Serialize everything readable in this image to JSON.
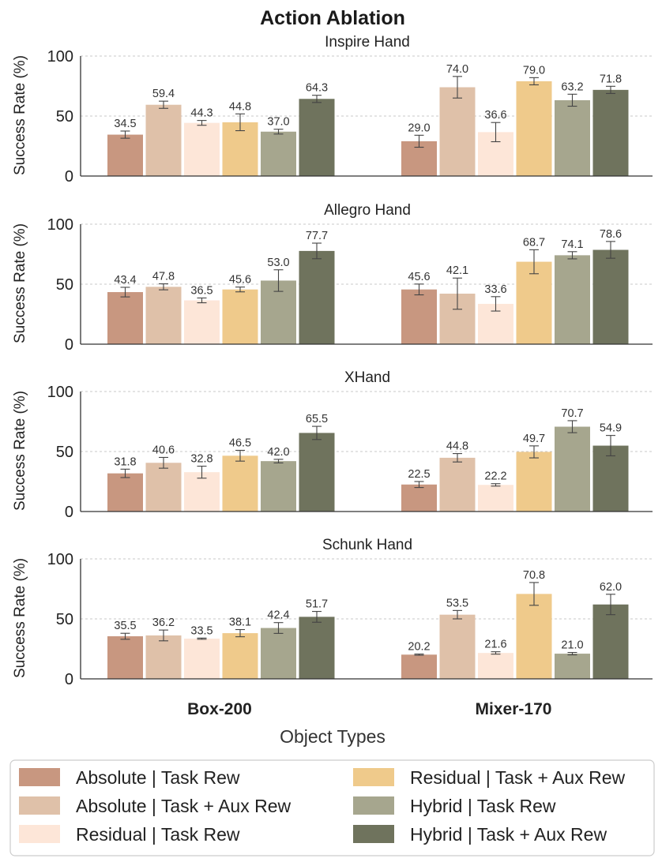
{
  "chart_data": {
    "type": "bar",
    "title": "Action Ablation",
    "xlabel": "Object Types",
    "ylabel": "Success Rate (%)",
    "ylim": [
      0,
      100
    ],
    "yticks": [
      0,
      50,
      100
    ],
    "grid": true,
    "legend_position": "bottom",
    "categories": [
      "Box-200",
      "Mixer-170"
    ],
    "series": [
      {
        "name": "Absolute | Task Rew",
        "color": "#c89780"
      },
      {
        "name": "Absolute | Task + Aux Rew",
        "color": "#dfc1a9"
      },
      {
        "name": "Residual | Task Rew",
        "color": "#fde6d8"
      },
      {
        "name": "Residual | Task + Aux Rew",
        "color": "#efca8b"
      },
      {
        "name": "Hybrid | Task Rew",
        "color": "#a6a68e"
      },
      {
        "name": "Hybrid | Task + Aux Rew",
        "color": "#6f735d"
      }
    ],
    "panels": [
      {
        "title": "Inspire Hand",
        "values": [
          [
            34.5,
            59.4,
            44.3,
            44.8,
            37.0,
            64.3
          ],
          [
            29.0,
            74.0,
            36.6,
            79.0,
            63.2,
            71.8
          ]
        ],
        "errors": [
          [
            3,
            3,
            2,
            7,
            2,
            3
          ],
          [
            5,
            9,
            8,
            3,
            5,
            3
          ]
        ],
        "labels": [
          [
            "34.5",
            "59.4",
            "44.3",
            "44.8",
            "37.0",
            "64.3"
          ],
          [
            "29.0",
            "74.0",
            "36.6",
            "79.0",
            "63.2",
            "71.8"
          ]
        ]
      },
      {
        "title": "Allegro Hand",
        "values": [
          [
            43.4,
            47.8,
            36.5,
            45.6,
            53.0,
            77.7
          ],
          [
            45.6,
            42.1,
            33.6,
            68.7,
            74.1,
            78.6
          ]
        ],
        "errors": [
          [
            4,
            2.5,
            2,
            2,
            9,
            6.5
          ],
          [
            4.5,
            13,
            6,
            10,
            3,
            7
          ]
        ],
        "labels": [
          [
            "43.4",
            "47.8",
            "36.5",
            "45.6",
            "53.0",
            "77.7"
          ],
          [
            "45.6",
            "42.1",
            "33.6",
            "68.7",
            "74.1",
            "78.6"
          ]
        ]
      },
      {
        "title": "XHand",
        "values": [
          [
            31.8,
            40.6,
            32.8,
            46.5,
            42.0,
            65.5
          ],
          [
            22.5,
            44.8,
            22.2,
            49.7,
            70.7,
            54.9
          ]
        ],
        "errors": [
          [
            3.5,
            4.5,
            5,
            4.5,
            1.5,
            5.5
          ],
          [
            2.5,
            3.5,
            1,
            5,
            5,
            8.5
          ]
        ],
        "labels": [
          [
            "31.8",
            "40.6",
            "32.8",
            "46.5",
            "42.0",
            "65.5"
          ],
          [
            "22.5",
            "44.8",
            "22.2",
            "49.7",
            "70.7",
            "54.9"
          ]
        ]
      },
      {
        "title": "Schunk Hand",
        "values": [
          [
            35.5,
            36.2,
            33.5,
            38.1,
            42.4,
            51.7
          ],
          [
            20.2,
            53.5,
            21.6,
            70.8,
            21.0,
            62.0
          ]
        ],
        "errors": [
          [
            2.5,
            4.5,
            0.5,
            3,
            4.5,
            4.5
          ],
          [
            0.5,
            3.5,
            1,
            9.5,
            1,
            8.5
          ]
        ],
        "labels": [
          [
            "35.5",
            "36.2",
            "33.5",
            "38.1",
            "42.4",
            "51.7"
          ],
          [
            "20.2",
            "53.5",
            "21.6",
            "70.8",
            "21.0",
            "62.0"
          ]
        ]
      }
    ]
  }
}
